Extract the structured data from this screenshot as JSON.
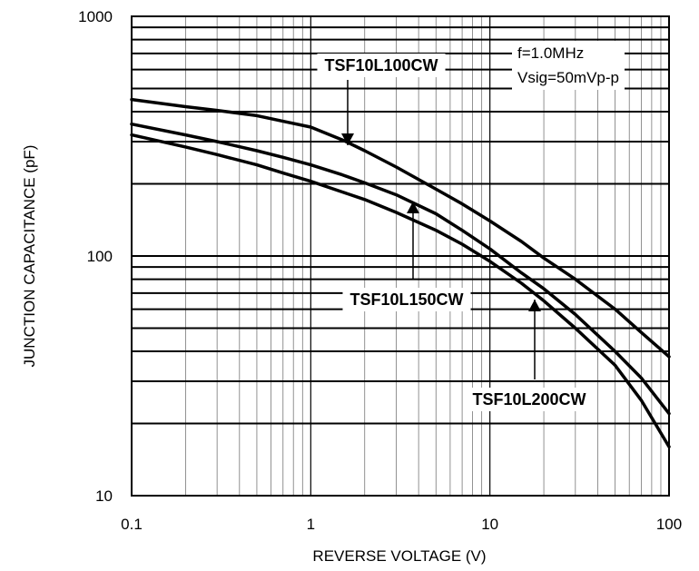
{
  "chart_data": {
    "type": "line",
    "title": "",
    "xlabel": "REVERSE VOLTAGE (V)",
    "ylabel": "JUNCTION CAPACITANCE (pF)",
    "x_scale": "log",
    "y_scale": "log",
    "xlim": [
      0.1,
      100
    ],
    "ylim": [
      10,
      1000
    ],
    "grid": true,
    "x_ticks": [
      "0.1",
      "1",
      "10",
      "100"
    ],
    "y_ticks": [
      "10",
      "100",
      "1000"
    ],
    "conditions": [
      "f=1.0MHz",
      "Vsig=50mVp-p"
    ],
    "series": [
      {
        "name": "TSF10L100CW",
        "x": [
          0.1,
          0.2,
          0.3,
          0.5,
          0.7,
          1,
          1.5,
          2,
          3,
          5,
          7,
          10,
          15,
          20,
          30,
          50,
          70,
          100
        ],
        "y": [
          450,
          420,
          405,
          385,
          365,
          345,
          305,
          275,
          235,
          190,
          165,
          140,
          115,
          98,
          80,
          60,
          48,
          38
        ]
      },
      {
        "name": "TSF10L150CW",
        "x": [
          0.1,
          0.2,
          0.3,
          0.5,
          0.7,
          1,
          1.5,
          2,
          3,
          5,
          7,
          10,
          15,
          20,
          30,
          50,
          70,
          100
        ],
        "y": [
          355,
          320,
          300,
          275,
          258,
          240,
          218,
          202,
          180,
          150,
          128,
          107,
          85,
          73,
          57,
          40,
          31,
          22
        ]
      },
      {
        "name": "TSF10L200CW",
        "x": [
          0.1,
          0.2,
          0.3,
          0.5,
          0.7,
          1,
          1.5,
          2,
          3,
          5,
          7,
          10,
          15,
          20,
          30,
          50,
          70,
          100
        ],
        "y": [
          320,
          285,
          265,
          240,
          222,
          205,
          185,
          172,
          152,
          128,
          112,
          95,
          77,
          65,
          50,
          35,
          25,
          16
        ]
      }
    ]
  }
}
